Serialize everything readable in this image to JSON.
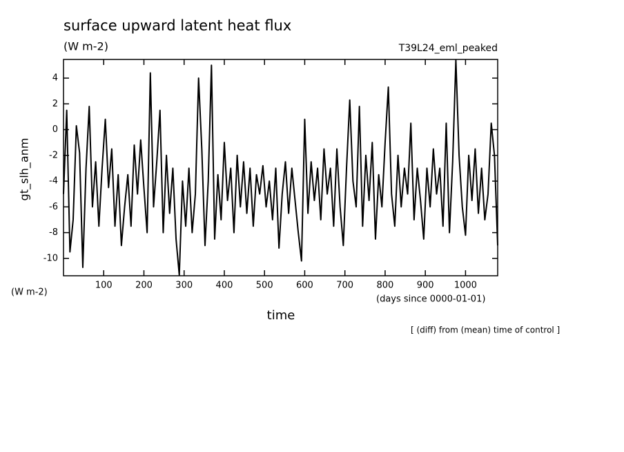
{
  "chart_data": {
    "type": "line",
    "title": "surface upward latent heat flux",
    "subtitle": "(W m-2)",
    "run_label": "T39L24_eml_peaked",
    "y_label": "gt_slh_anm",
    "y_units": "(W m-2)",
    "x_units": "(days since 0000-01-01)",
    "x_label": "time",
    "note": "[ (diff) from (mean) time of control ]",
    "color": "#000000",
    "xlim": [
      0,
      1080
    ],
    "ylim": [
      -11.35,
      5.45
    ],
    "xticks": [
      100,
      200,
      300,
      400,
      500,
      600,
      700,
      800,
      900,
      1000
    ],
    "yticks": [
      -10,
      -8,
      -6,
      -4,
      -2,
      0,
      2,
      4
    ],
    "x": [
      0,
      8,
      16,
      24,
      32,
      40,
      48,
      56,
      64,
      72,
      80,
      88,
      96,
      104,
      112,
      120,
      128,
      136,
      144,
      152,
      160,
      168,
      176,
      184,
      192,
      200,
      208,
      216,
      224,
      232,
      240,
      248,
      256,
      264,
      272,
      280,
      288,
      296,
      304,
      312,
      320,
      328,
      336,
      344,
      352,
      360,
      368,
      376,
      384,
      392,
      400,
      408,
      416,
      424,
      432,
      440,
      448,
      456,
      464,
      472,
      480,
      488,
      496,
      504,
      512,
      520,
      528,
      536,
      544,
      552,
      560,
      568,
      576,
      584,
      592,
      600,
      608,
      616,
      624,
      632,
      640,
      648,
      656,
      664,
      672,
      680,
      688,
      696,
      704,
      712,
      720,
      728,
      736,
      744,
      752,
      760,
      768,
      776,
      784,
      792,
      800,
      808,
      816,
      824,
      832,
      840,
      848,
      856,
      864,
      872,
      880,
      888,
      896,
      904,
      912,
      920,
      928,
      936,
      944,
      952,
      960,
      968,
      976,
      984,
      992,
      1000,
      1008,
      1016,
      1024,
      1032,
      1040,
      1048,
      1056,
      1064,
      1072,
      1080
    ],
    "values": [
      -5,
      1.5,
      -9.5,
      -7,
      0.3,
      -1.8,
      -10.7,
      -3,
      1.8,
      -6,
      -2.5,
      -7.5,
      -3,
      0.8,
      -4.5,
      -1.5,
      -7.5,
      -3.5,
      -9,
      -6,
      -3.5,
      -7.5,
      -1.2,
      -5,
      -0.8,
      -4.5,
      -8,
      4.4,
      -6,
      -2.5,
      1.5,
      -8,
      -2,
      -6.5,
      -3,
      -8.5,
      -11.3,
      -4,
      -7.5,
      -3,
      -8,
      -5,
      4,
      -1.5,
      -9,
      -4,
      5,
      -8.5,
      -3.5,
      -7,
      -1,
      -5.5,
      -3,
      -8,
      -2,
      -6,
      -2.5,
      -6.5,
      -3,
      -7.5,
      -3.5,
      -5,
      -2.8,
      -6,
      -4,
      -7,
      -3,
      -9.2,
      -5,
      -2.5,
      -6.5,
      -3,
      -5.5,
      -8,
      -10.2,
      0.8,
      -6.5,
      -2.5,
      -5.5,
      -3,
      -7,
      -1.5,
      -5,
      -3,
      -7.5,
      -1.5,
      -6,
      -9,
      -3,
      2.3,
      -4,
      -6,
      1.8,
      -7.5,
      -2,
      -5.5,
      -1,
      -8.5,
      -3.5,
      -6,
      -1,
      3.3,
      -5,
      -7.5,
      -2,
      -6,
      -3,
      -5,
      0.5,
      -7,
      -3,
      -5.5,
      -8.5,
      -3,
      -6,
      -1.5,
      -5,
      -3,
      -7.5,
      0.5,
      -8,
      -2.5,
      5.4,
      -2,
      -6,
      -8.2,
      -2,
      -5.5,
      -1.5,
      -6.5,
      -3,
      -7,
      -5,
      0.5,
      -2,
      -9
    ]
  }
}
